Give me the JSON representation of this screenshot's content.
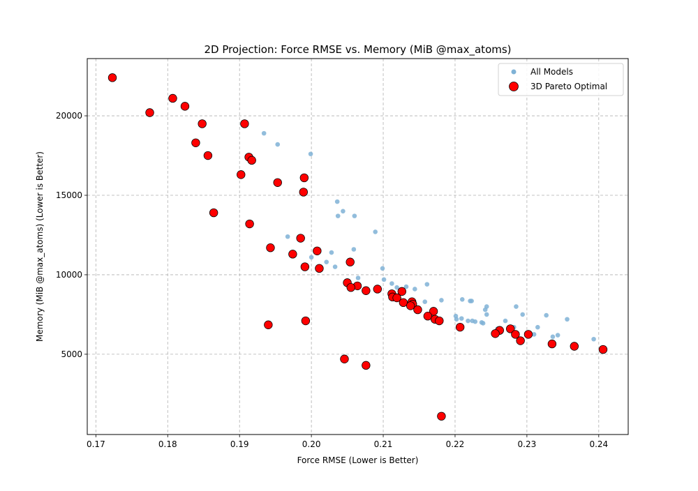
{
  "chart_data": {
    "type": "scatter",
    "title": "2D Projection: Force RMSE vs. Memory (MiB @max_atoms)",
    "xlabel": "Force RMSE (Lower is Better)",
    "ylabel": "Memory (MiB @max_atoms) (Lower is Better)",
    "xlim": [
      0.1688,
      0.2441
    ],
    "ylim": [
      -50,
      23600
    ],
    "xticks": [
      0.17,
      0.18,
      0.19,
      0.2,
      0.21,
      0.22,
      0.23,
      0.24
    ],
    "xtick_labels": [
      "0.17",
      "0.18",
      "0.19",
      "0.20",
      "0.21",
      "0.22",
      "0.23",
      "0.24"
    ],
    "yticks": [
      5000,
      10000,
      15000,
      20000
    ],
    "ytick_labels": [
      "5000",
      "10000",
      "15000",
      "20000"
    ],
    "grid": true,
    "legend_position": "top-right",
    "series": [
      {
        "name": "All Models",
        "color": "#7fb2d6",
        "points": [
          [
            0.1934,
            18900
          ],
          [
            0.1953,
            18200
          ],
          [
            0.1999,
            17600
          ],
          [
            0.2036,
            14600
          ],
          [
            0.2044,
            14000
          ],
          [
            0.2037,
            13700
          ],
          [
            0.206,
            13700
          ],
          [
            0.2089,
            12700
          ],
          [
            0.1967,
            12400
          ],
          [
            0.2059,
            11600
          ],
          [
            0.2028,
            11400
          ],
          [
            0.2,
            11100
          ],
          [
            0.2021,
            10800
          ],
          [
            0.2033,
            10500
          ],
          [
            0.2099,
            10400
          ],
          [
            0.2065,
            9800
          ],
          [
            0.2101,
            9700
          ],
          [
            0.2112,
            9450
          ],
          [
            0.2119,
            9200
          ],
          [
            0.2132,
            9250
          ],
          [
            0.2161,
            9400
          ],
          [
            0.2144,
            9100
          ],
          [
            0.2158,
            8300
          ],
          [
            0.2181,
            8400
          ],
          [
            0.221,
            8450
          ],
          [
            0.2221,
            8350
          ],
          [
            0.2223,
            8350
          ],
          [
            0.2244,
            8000
          ],
          [
            0.2242,
            7800
          ],
          [
            0.2244,
            7500
          ],
          [
            0.2285,
            8000
          ],
          [
            0.2294,
            7500
          ],
          [
            0.2327,
            7450
          ],
          [
            0.2356,
            7200
          ],
          [
            0.2201,
            7400
          ],
          [
            0.2202,
            7200
          ],
          [
            0.2209,
            7250
          ],
          [
            0.2218,
            7100
          ],
          [
            0.2224,
            7100
          ],
          [
            0.2228,
            7050
          ],
          [
            0.2237,
            7000
          ],
          [
            0.2239,
            6950
          ],
          [
            0.227,
            7100
          ],
          [
            0.2259,
            6600
          ],
          [
            0.2282,
            6700
          ],
          [
            0.2315,
            6700
          ],
          [
            0.2302,
            6350
          ],
          [
            0.231,
            6250
          ],
          [
            0.2336,
            6100
          ],
          [
            0.2343,
            6200
          ],
          [
            0.2393,
            5950
          ]
        ]
      },
      {
        "name": "3D Pareto Optimal",
        "color": "#ff0000",
        "points": [
          [
            0.1723,
            22400
          ],
          [
            0.1807,
            21100
          ],
          [
            0.1775,
            20200
          ],
          [
            0.1824,
            20600
          ],
          [
            0.1848,
            19500
          ],
          [
            0.1907,
            19500
          ],
          [
            0.1839,
            18300
          ],
          [
            0.1856,
            17500
          ],
          [
            0.1913,
            17400
          ],
          [
            0.1917,
            17200
          ],
          [
            0.1902,
            16300
          ],
          [
            0.199,
            16100
          ],
          [
            0.1953,
            15800
          ],
          [
            0.1989,
            15200
          ],
          [
            0.1864,
            13900
          ],
          [
            0.1914,
            13200
          ],
          [
            0.1985,
            12300
          ],
          [
            0.1943,
            11700
          ],
          [
            0.1974,
            11300
          ],
          [
            0.2008,
            11500
          ],
          [
            0.2054,
            10800
          ],
          [
            0.1991,
            10500
          ],
          [
            0.2011,
            10400
          ],
          [
            0.205,
            9500
          ],
          [
            0.2064,
            9300
          ],
          [
            0.2055,
            9200
          ],
          [
            0.2092,
            9100
          ],
          [
            0.2076,
            9000
          ],
          [
            0.2126,
            8950
          ],
          [
            0.2112,
            8800
          ],
          [
            0.2113,
            8600
          ],
          [
            0.2119,
            8550
          ],
          [
            0.2128,
            8250
          ],
          [
            0.214,
            8300
          ],
          [
            0.2141,
            8150
          ],
          [
            0.2138,
            8050
          ],
          [
            0.2148,
            7800
          ],
          [
            0.217,
            7700
          ],
          [
            0.2162,
            7400
          ],
          [
            0.2172,
            7200
          ],
          [
            0.2178,
            7100
          ],
          [
            0.2207,
            6700
          ],
          [
            0.2277,
            6600
          ],
          [
            0.2262,
            6500
          ],
          [
            0.2256,
            6300
          ],
          [
            0.2284,
            6250
          ],
          [
            0.2302,
            6250
          ],
          [
            0.2291,
            5850
          ],
          [
            0.2335,
            5650
          ],
          [
            0.2366,
            5500
          ],
          [
            0.2406,
            5300
          ],
          [
            0.194,
            6850
          ],
          [
            0.1992,
            7100
          ],
          [
            0.2046,
            4700
          ],
          [
            0.2076,
            4300
          ],
          [
            0.2181,
            1100
          ]
        ]
      }
    ]
  }
}
